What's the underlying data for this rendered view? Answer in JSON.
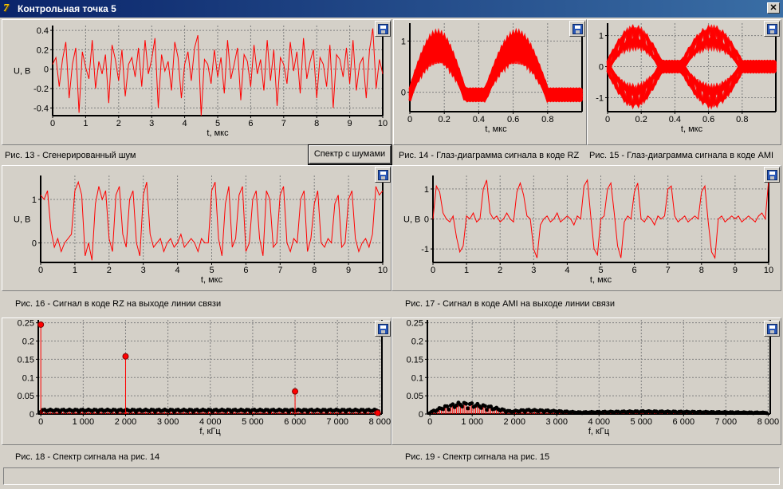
{
  "window": {
    "title": "Контрольная точка 5",
    "icon": "delphi-app-icon",
    "close_label": "✕"
  },
  "spectrum_button": {
    "label": "Спектр с шумами"
  },
  "captions": {
    "fig13": "Рис. 13 - Сгенерированный шум",
    "fig14": "Рис. 14 - Глаз-диаграмма сигнала в коде RZ",
    "fig15": "Рис. 15 - Глаз-диаграмма сигнала в коде AMI",
    "fig16": "Рис. 16 - Сигнал в коде RZ на выходе линии связи",
    "fig17": "Рис. 17 - Сигнал в коде AMI на выходе линии связи",
    "fig18": "Рис. 18 - Спектр сигнала на рис. 14",
    "fig19": "Рис. 19 - Спектр сигнала на рис. 15"
  },
  "colors": {
    "trace": "#ff0000",
    "plot_bg": "#d4d0c8",
    "grid": "#808080",
    "spectrum_base": "#000000",
    "title_bar": "#0a246a"
  },
  "chart_data": [
    {
      "id": "fig13",
      "type": "line",
      "xlabel": "t, мкс",
      "ylabel": "U, В",
      "xlim": [
        0,
        10
      ],
      "ylim": [
        -0.48,
        0.45
      ],
      "xticks": [
        0,
        1,
        2,
        3,
        4,
        5,
        6,
        7,
        8,
        9,
        10
      ],
      "yticks": [
        -0.4,
        -0.2,
        0,
        0.2,
        0.4
      ],
      "ytick_labels": [
        "-0.4",
        "-0.2",
        "0",
        "0.2",
        "0.4"
      ],
      "series": [
        {
          "values": [
            0.05,
            0.12,
            -0.18,
            0.1,
            0.28,
            -0.3,
            0.05,
            0.22,
            -0.45,
            0.18,
            0.02,
            -0.1,
            0.3,
            -0.2,
            0.08,
            -0.05,
            0.15,
            -0.35,
            0.25,
            0.1,
            -0.12,
            0.2,
            -0.28,
            0.05,
            0.12,
            -0.08,
            0.22,
            -0.18,
            0.3,
            -0.05,
            0.1,
            0.32,
            -0.4,
            0.15,
            -0.02,
            0.08,
            -0.22,
            0.28,
            0.12,
            -0.3,
            0.05,
            0.18,
            -0.12,
            0.22,
            0.35,
            -0.48,
            0.1,
            0.05,
            -0.15,
            0.2,
            -0.08,
            0.12,
            -0.25,
            0.3,
            -0.1,
            0.05,
            0.22,
            -0.32,
            0.15,
            0.08,
            -0.18,
            0.25,
            -0.05,
            0.1,
            -0.22,
            0.3,
            -0.12,
            0.2,
            -0.38,
            0.12,
            0.05,
            -0.15,
            0.28,
            -0.02,
            0.18,
            -0.25,
            0.32,
            -0.1,
            0.08,
            0.2,
            -0.3,
            0.12,
            0.05,
            -0.18,
            0.25,
            -0.4,
            0.15,
            0.1,
            -0.08,
            0.22,
            -0.15,
            0.3,
            -0.22,
            0.05,
            0.12,
            -0.3,
            0.2,
            0.42,
            -0.2,
            0.1,
            -0.05
          ]
        }
      ]
    },
    {
      "id": "fig14",
      "type": "area",
      "xlim": [
        0,
        1
      ],
      "ylim": [
        -0.38,
        1.35
      ],
      "xlabel": "t, мкс",
      "ylabel": "",
      "xticks": [
        0,
        0.2,
        0.4,
        0.6,
        0.8
      ],
      "xtick_labels": [
        "0",
        "0.2",
        "0.4",
        "0.6",
        "0.8"
      ],
      "yticks": [
        0,
        1
      ],
      "ytick_labels": [
        "0",
        "1"
      ]
    },
    {
      "id": "fig15",
      "type": "area",
      "xlim": [
        0,
        1
      ],
      "ylim": [
        -1.45,
        1.4
      ],
      "xlabel": "t, мкс",
      "ylabel": "",
      "xticks": [
        0,
        0.2,
        0.4,
        0.6,
        0.8
      ],
      "xtick_labels": [
        "0",
        "0.2",
        "0.4",
        "0.6",
        "0.8"
      ],
      "yticks": [
        -1,
        0,
        1
      ],
      "ytick_labels": [
        "-1",
        "0",
        "1"
      ]
    },
    {
      "id": "fig16",
      "type": "line",
      "xlabel": "t, мкс",
      "ylabel": "U, В",
      "xlim": [
        0,
        10
      ],
      "ylim": [
        -0.45,
        1.55
      ],
      "xticks": [
        0,
        1,
        2,
        3,
        4,
        5,
        6,
        7,
        8,
        9,
        10
      ],
      "yticks": [
        0,
        1
      ],
      "ytick_labels": [
        "0",
        "1"
      ],
      "series": [
        {
          "values": [
            1.1,
            1.0,
            1.2,
            0.3,
            -0.1,
            0.1,
            -0.2,
            0.0,
            0.1,
            0.2,
            1.2,
            1.4,
            1.1,
            -0.3,
            0.0,
            -0.4,
            0.9,
            1.3,
            1.0,
            1.2,
            0.1,
            -0.2,
            1.1,
            1.3,
            0.2,
            -0.1,
            1.0,
            1.2,
            0.0,
            -0.3,
            1.1,
            1.4,
            0.2,
            -0.1,
            0.0,
            0.1,
            -0.2,
            0.0,
            0.1,
            -0.1,
            0.0,
            0.2,
            -0.1,
            0.0,
            0.1,
            0.0,
            -0.2,
            0.1,
            0.0,
            0.0,
            1.2,
            1.4,
            0.1,
            -0.3,
            0.9,
            1.3,
            -0.1,
            0.1,
            1.1,
            1.3,
            -0.2,
            0.0,
            1.0,
            1.2,
            0.1,
            -0.3,
            1.2,
            1.0,
            -0.1,
            0.0,
            1.1,
            1.3,
            0.0,
            -0.2,
            0.1,
            0.0,
            1.0,
            1.2,
            -0.2,
            0.1,
            0.9,
            1.2,
            0.0,
            -0.1,
            0.1,
            0.0,
            0.9,
            1.1,
            -0.1,
            0.0,
            1.0,
            1.2,
            0.1,
            -0.2,
            0.0,
            0.1,
            -0.1,
            0.2,
            1.3,
            1.1,
            1.2
          ]
        }
      ]
    },
    {
      "id": "fig17",
      "type": "line",
      "xlabel": "t, мкс",
      "ylabel": "U, В",
      "xlim": [
        0,
        10
      ],
      "ylim": [
        -1.45,
        1.45
      ],
      "xticks": [
        0,
        1,
        2,
        3,
        4,
        5,
        6,
        7,
        8,
        9,
        10
      ],
      "yticks": [
        -1,
        0,
        1
      ],
      "ytick_labels": [
        "-1",
        "0",
        "1"
      ],
      "series": [
        {
          "values": [
            0.0,
            1.1,
            0.9,
            0.2,
            0.0,
            -0.1,
            0.1,
            -0.6,
            -1.1,
            -0.9,
            0.1,
            0.0,
            0.2,
            -0.1,
            0.0,
            1.0,
            1.3,
            0.2,
            0.0,
            0.1,
            -0.1,
            0.0,
            0.2,
            0.0,
            -0.1,
            0.9,
            1.2,
            0.8,
            0.1,
            0.0,
            -1.0,
            -1.3,
            -0.2,
            0.0,
            0.1,
            -0.1,
            0.0,
            0.2,
            -0.1,
            0.0,
            0.1,
            0.0,
            -0.2,
            0.1,
            0.0,
            1.1,
            1.3,
            0.1,
            -1.0,
            -1.2,
            0.0,
            0.1,
            1.0,
            1.2,
            0.2,
            -0.9,
            -1.3,
            -0.1,
            0.1,
            0.0,
            0.9,
            1.2,
            0.0,
            -0.1,
            0.1,
            0.0,
            -0.2,
            0.1,
            0.0,
            0.1,
            1.0,
            1.1,
            0.1,
            -0.1,
            0.0,
            0.1,
            -0.1,
            0.0,
            0.1,
            0.0,
            0.9,
            1.1,
            -0.1,
            -1.1,
            -1.3,
            0.0,
            0.1,
            -0.1,
            0.0,
            0.1,
            0.0,
            0.1,
            -0.1,
            0.0,
            0.1,
            0.0,
            -0.1,
            0.1,
            0.2,
            0.0,
            1.3
          ]
        }
      ]
    },
    {
      "id": "fig18",
      "type": "stem",
      "xlabel": "f, кГц",
      "ylabel": "",
      "xlim": [
        -60,
        8050
      ],
      "ylim": [
        0,
        0.258
      ],
      "xticks": [
        0,
        1000,
        2000,
        3000,
        4000,
        5000,
        6000,
        7000,
        8000
      ],
      "xtick_labels": [
        "0",
        "1 000",
        "2 000",
        "3 000",
        "4 000",
        "5 000",
        "6 000",
        "7 000",
        "8 000"
      ],
      "yticks": [
        0,
        0.05,
        0.1,
        0.15,
        0.2,
        0.25
      ],
      "ytick_labels": [
        "0",
        "0.05",
        "0.1",
        "0.15",
        "0.2",
        "0.25"
      ],
      "peaks": [
        {
          "f": 0,
          "value": 0.245
        },
        {
          "f": 2000,
          "value": 0.158
        },
        {
          "f": 6000,
          "value": 0.062
        },
        {
          "f": 7950,
          "value": 0.003
        }
      ],
      "noise_floor": 0.012
    },
    {
      "id": "fig19",
      "type": "stem",
      "xlabel": "f, кГц",
      "ylabel": "",
      "xlim": [
        -60,
        8050
      ],
      "ylim": [
        0,
        0.258
      ],
      "xticks": [
        0,
        1000,
        2000,
        3000,
        4000,
        5000,
        6000,
        7000,
        8000
      ],
      "xtick_labels": [
        "0",
        "1 000",
        "2 000",
        "3 000",
        "4 000",
        "5 000",
        "6 000",
        "7 000",
        "8 000"
      ],
      "yticks": [
        0,
        0.05,
        0.1,
        0.15,
        0.2,
        0.25
      ],
      "ytick_labels": [
        "0",
        "0.05",
        "0.1",
        "0.15",
        "0.2",
        "0.25"
      ],
      "envelope": [
        {
          "f": 0,
          "value": 0.005
        },
        {
          "f": 300,
          "value": 0.02
        },
        {
          "f": 700,
          "value": 0.032
        },
        {
          "f": 1000,
          "value": 0.03
        },
        {
          "f": 1400,
          "value": 0.022
        },
        {
          "f": 1900,
          "value": 0.008
        },
        {
          "f": 2300,
          "value": 0.012
        },
        {
          "f": 2800,
          "value": 0.01
        },
        {
          "f": 3500,
          "value": 0.005
        },
        {
          "f": 5000,
          "value": 0.008
        },
        {
          "f": 8000,
          "value": 0.004
        }
      ]
    }
  ]
}
